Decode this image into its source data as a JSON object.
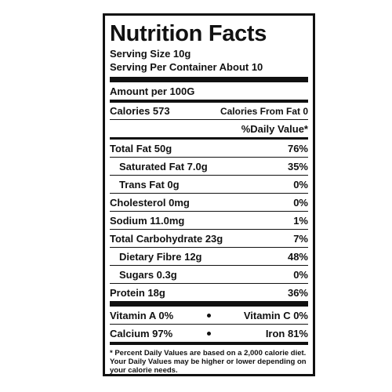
{
  "title": "Nutrition Facts",
  "serving_size": "Serving Size 10g",
  "servings_per_container": "Serving Per Container About 10",
  "amount_per": "Amount per 100G",
  "calories": {
    "label": "Calories 573",
    "from_fat": "Calories From Fat 0"
  },
  "daily_value_header": "%Daily Value*",
  "nutrients": [
    {
      "label": "Total Fat 50g",
      "percent": "76%",
      "indent": false
    },
    {
      "label": "Saturated Fat 7.0g",
      "percent": "35%",
      "indent": true
    },
    {
      "label": "Trans Fat 0g",
      "percent": "0%",
      "indent": true
    },
    {
      "label": "Cholesterol 0mg",
      "percent": "0%",
      "indent": false
    },
    {
      "label": "Sodium 11.0mg",
      "percent": "1%",
      "indent": false
    },
    {
      "label": "Total Carbohydrate 23g",
      "percent": "7%",
      "indent": false
    },
    {
      "label": "Dietary Fibre 12g",
      "percent": "48%",
      "indent": true
    },
    {
      "label": "Sugars 0.3g",
      "percent": "0%",
      "indent": true
    },
    {
      "label": "Protein 18g",
      "percent": "36%",
      "indent": false
    }
  ],
  "vitamins": [
    [
      "Vitamin A 0%",
      "Vitamin C 0%"
    ],
    [
      "Calcium 97%",
      "Iron 81%"
    ]
  ],
  "footnote": [
    "* Percent Daily Values are based on a 2,000 calorie diet.",
    "Your Daily Values may be higher or lower depending on",
    "your calorie needs."
  ]
}
